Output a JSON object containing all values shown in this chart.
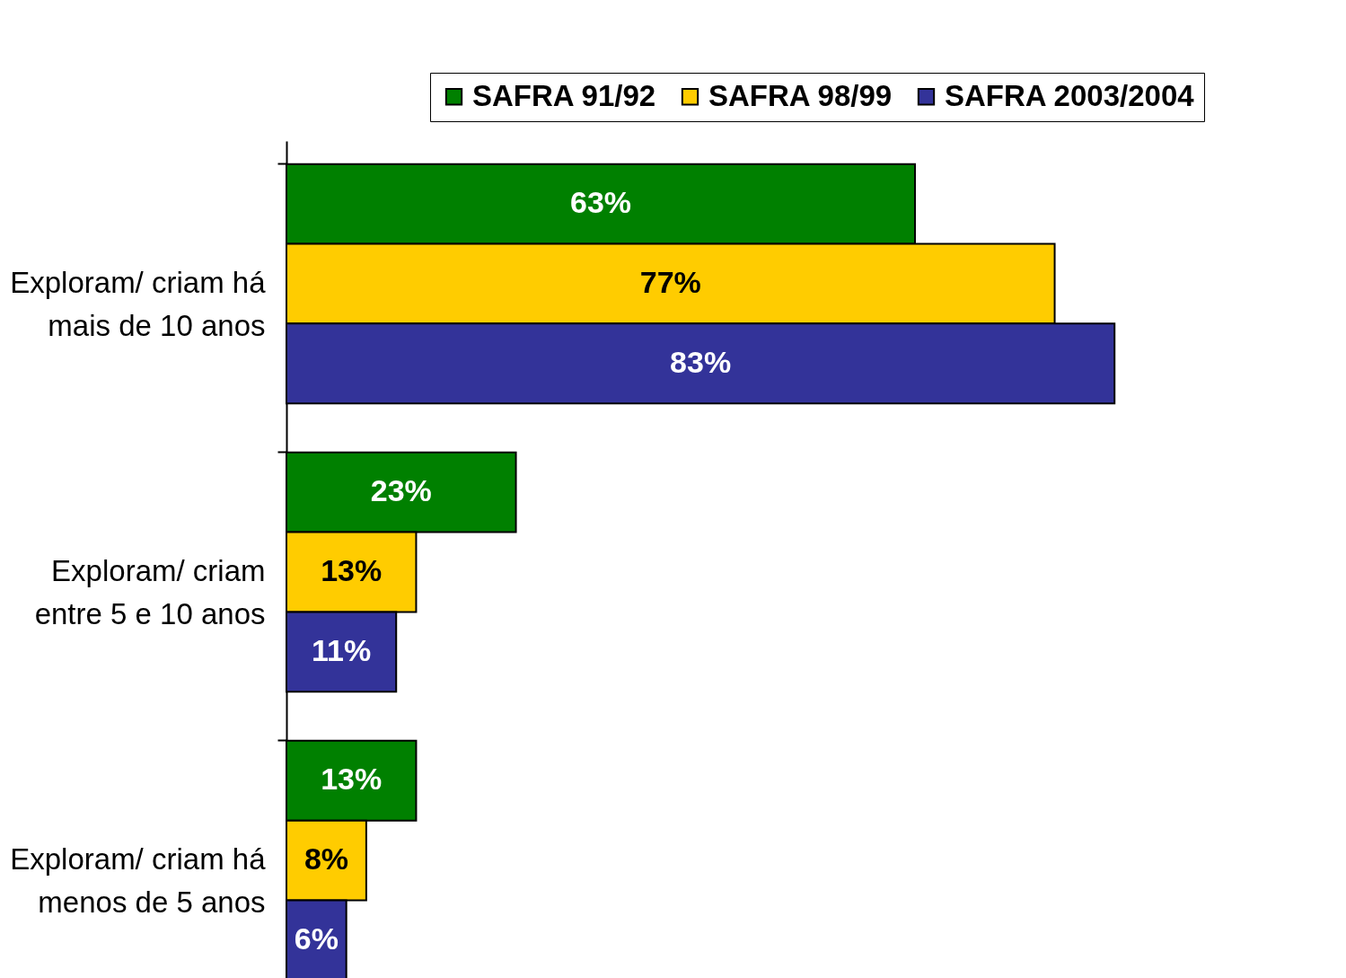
{
  "chart_data": {
    "type": "bar",
    "orientation": "horizontal",
    "categories": [
      "Exploram/ criam há mais de 10 anos",
      "Exploram/ criam entre 5 e 10 anos",
      "Exploram/ criam há menos de 5 anos"
    ],
    "series": [
      {
        "name": "SAFRA 91/92",
        "color": "#008000",
        "values": [
          63,
          23,
          13
        ],
        "value_labels": [
          "63%",
          "23%",
          "13%"
        ]
      },
      {
        "name": "SAFRA 98/99",
        "color": "#ffcc00",
        "values": [
          77,
          13,
          8
        ],
        "value_labels": [
          "77%",
          "13%",
          "8%"
        ]
      },
      {
        "name": "SAFRA 2003/2004",
        "color": "#333399",
        "values": [
          83,
          11,
          6
        ],
        "value_labels": [
          "83%",
          "11%",
          "6%"
        ]
      }
    ],
    "legend": "top right",
    "grid": false
  }
}
